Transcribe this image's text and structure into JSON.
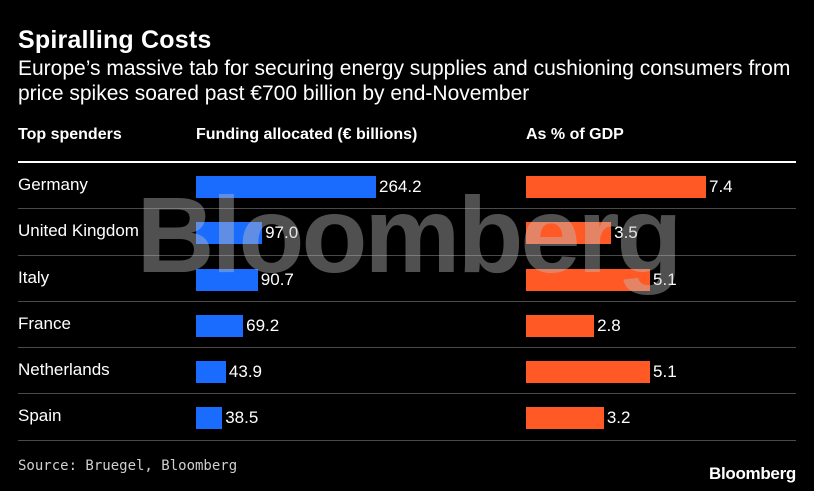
{
  "title": "Spiralling Costs",
  "subtitle": "Europe’s massive tab for securing energy supplies and cushioning consumers from price spikes soared past €700 billion by end-November",
  "headers": {
    "country": "Top spenders",
    "funding": "Funding allocated (€ billions)",
    "gdp": "As % of GDP"
  },
  "source": "Source: Bruegel, Bloomberg",
  "watermark": "Bloomberg",
  "brand": "Bloomberg",
  "colors": {
    "funding": "#1a6cff",
    "gdp": "#ff5a26",
    "background": "#000000"
  },
  "chart_data": {
    "type": "bar",
    "categories": [
      "Germany",
      "United Kingdom",
      "Italy",
      "France",
      "Netherlands",
      "Spain"
    ],
    "series": [
      {
        "name": "Funding allocated (€ billions)",
        "values": [
          264.2,
          97.0,
          90.7,
          69.2,
          43.9,
          38.5
        ],
        "labels": [
          "264.2",
          "97.0",
          "90.7",
          "69.2",
          "43.9",
          "38.5"
        ]
      },
      {
        "name": "As % of GDP",
        "values": [
          7.4,
          3.5,
          5.1,
          2.8,
          5.1,
          3.2
        ],
        "labels": [
          "7.4",
          "3.5",
          "5.1",
          "2.8",
          "5.1",
          "3.2"
        ]
      }
    ]
  }
}
